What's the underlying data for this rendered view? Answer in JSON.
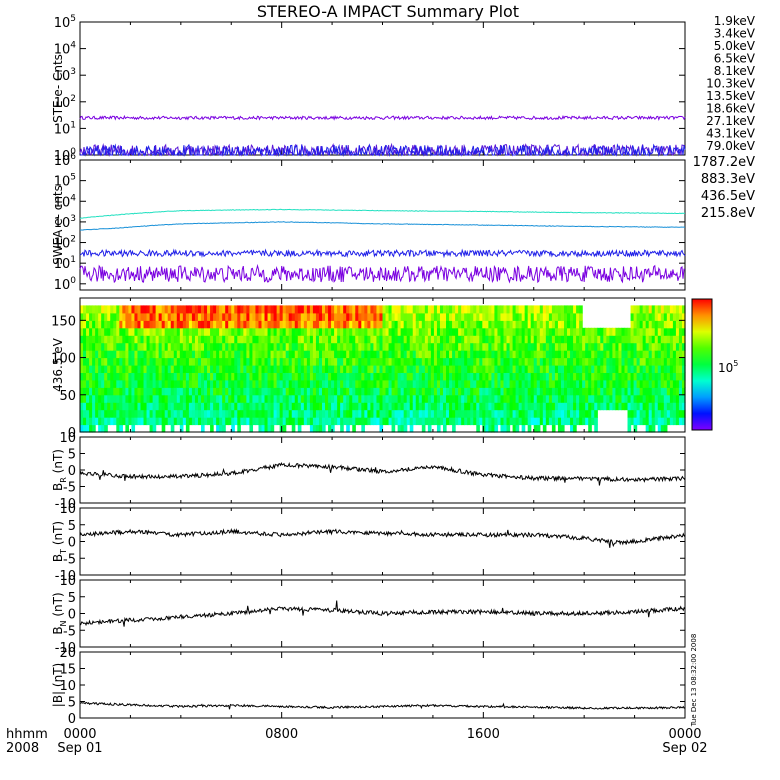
{
  "title": "STEREO-A IMPACT Summary Plot",
  "time_axis": {
    "prefix_top": "hhmm",
    "prefix_bottom": "2008",
    "ticks": [
      {
        "t": 0,
        "top": "0000",
        "bottom": "Sep 01"
      },
      {
        "t": 8,
        "top": "0800",
        "bottom": ""
      },
      {
        "t": 16,
        "top": "1600",
        "bottom": ""
      },
      {
        "t": 24,
        "top": "0000",
        "bottom": "Sep 02"
      }
    ],
    "range_hours": [
      0,
      24
    ]
  },
  "timestamp": "Tue Dec 13 08:32:00 2008",
  "colors": {
    "ste": [
      "#7a00e0",
      "#5a18d8",
      "#2020e8",
      "#1890d8",
      "#18c0e0",
      "#20e090",
      "#40d040",
      "#b0d020",
      "#e8b000",
      "#f07000",
      "#e02020"
    ],
    "swea": [
      "#7a00e0",
      "#2020e8",
      "#1890d8",
      "#20e0c0"
    ],
    "trace": "#000000"
  },
  "chart_data": [
    {
      "type": "line",
      "panel": "ste",
      "ylabel": "STE e- Cnts",
      "yscale": "log",
      "ylim_exp": [
        0,
        5
      ],
      "ytick_labels": [
        "10^0",
        "10^1",
        "10^2",
        "10^3",
        "10^4",
        "10^5"
      ],
      "legend": [
        "1.9keV",
        "3.4keV",
        "5.0keV",
        "6.5keV",
        "8.1keV",
        "10.3keV",
        "13.5keV",
        "18.6keV",
        "27.1keV",
        "43.1keV",
        "79.0keV"
      ],
      "series": [
        {
          "name": "1.9keV",
          "level": 25,
          "noise": 0.06
        },
        {
          "name": "3.4keV",
          "level": 1.4,
          "noise": 0.25
        },
        {
          "name": "5.0keV",
          "level": 1.2,
          "noise": 0.3
        }
      ]
    },
    {
      "type": "line",
      "panel": "swea",
      "ylabel": "SWEA e- cnts",
      "yscale": "log",
      "ylim_exp": [
        -0.3,
        6
      ],
      "ytick_labels": [
        "10^0",
        "10^1",
        "10^2",
        "10^3",
        "10^4",
        "10^5",
        "10^6"
      ],
      "legend": [
        "1787.2eV",
        "883.3eV",
        "436.5eV",
        "215.8eV"
      ],
      "series": [
        {
          "name": "1787.2eV",
          "level": 3,
          "noise": 0.4
        },
        {
          "name": "883.3eV",
          "level": 30,
          "noise": 0.15
        },
        {
          "name": "436.5eV",
          "profile": [
            [
              0,
              400
            ],
            [
              1.5,
              500
            ],
            [
              4,
              800
            ],
            [
              8,
              1000
            ],
            [
              12,
              800
            ],
            [
              16,
              700
            ],
            [
              20,
              600
            ],
            [
              24,
              550
            ]
          ]
        },
        {
          "name": "215.8eV",
          "profile": [
            [
              0,
              1500
            ],
            [
              1.5,
              2200
            ],
            [
              4,
              3500
            ],
            [
              8,
              4000
            ],
            [
              12,
              3500
            ],
            [
              16,
              3200
            ],
            [
              20,
              2800
            ],
            [
              24,
              2600
            ]
          ]
        }
      ]
    },
    {
      "type": "heatmap",
      "panel": "pad",
      "ylabel": "436.5 eV",
      "ylim": [
        0,
        180
      ],
      "yticks": [
        0,
        50,
        100,
        150
      ],
      "colorbar_label": "10^5"
    },
    {
      "type": "line",
      "panel": "br",
      "ylabel": "B_R (nT)",
      "sub": "R",
      "ylim": [
        -10,
        10
      ],
      "yticks": [
        -10,
        -5,
        0,
        5,
        10
      ],
      "profile": [
        [
          0,
          -1
        ],
        [
          2,
          -2
        ],
        [
          4,
          -2
        ],
        [
          6,
          -1
        ],
        [
          8,
          1.5
        ],
        [
          10,
          1
        ],
        [
          12,
          -0.5
        ],
        [
          14,
          1
        ],
        [
          16,
          -1.5
        ],
        [
          18,
          -2.5
        ],
        [
          20,
          -2.5
        ],
        [
          22,
          -3
        ],
        [
          24,
          -2.5
        ]
      ]
    },
    {
      "type": "line",
      "panel": "bt",
      "ylabel": "B_T (nT)",
      "sub": "T",
      "ylim": [
        -10,
        10
      ],
      "yticks": [
        -10,
        -5,
        0,
        5,
        10
      ],
      "profile": [
        [
          0,
          2
        ],
        [
          2,
          3
        ],
        [
          4,
          2
        ],
        [
          6,
          3
        ],
        [
          8,
          2
        ],
        [
          10,
          3
        ],
        [
          12,
          2.5
        ],
        [
          14,
          2
        ],
        [
          16,
          2
        ],
        [
          18,
          2
        ],
        [
          20,
          1
        ],
        [
          21.5,
          -0.5
        ],
        [
          23,
          1
        ],
        [
          24,
          2
        ]
      ]
    },
    {
      "type": "line",
      "panel": "bn",
      "ylabel": "B_N (nT)",
      "sub": "N",
      "ylim": [
        -10,
        10
      ],
      "yticks": [
        -10,
        -5,
        0,
        5,
        10
      ],
      "profile": [
        [
          0,
          -3
        ],
        [
          2,
          -2
        ],
        [
          4,
          -1
        ],
        [
          6,
          0
        ],
        [
          8,
          1.5
        ],
        [
          10,
          1
        ],
        [
          12,
          0
        ],
        [
          14,
          0.5
        ],
        [
          16,
          0.5
        ],
        [
          18,
          0
        ],
        [
          20,
          0
        ],
        [
          22,
          0.5
        ],
        [
          24,
          1.5
        ]
      ]
    },
    {
      "type": "line",
      "panel": "bmag",
      "ylabel": "|B| (nT)",
      "ylim": [
        0,
        20
      ],
      "yticks": [
        0,
        5,
        10,
        15,
        20
      ],
      "profile": [
        [
          0,
          4.5
        ],
        [
          2,
          4
        ],
        [
          4,
          3.5
        ],
        [
          6,
          3.8
        ],
        [
          8,
          3.5
        ],
        [
          10,
          3.2
        ],
        [
          12,
          3.5
        ],
        [
          14,
          3.8
        ],
        [
          16,
          3.5
        ],
        [
          18,
          3.3
        ],
        [
          20,
          3
        ],
        [
          22,
          3
        ],
        [
          24,
          3.2
        ]
      ]
    }
  ]
}
